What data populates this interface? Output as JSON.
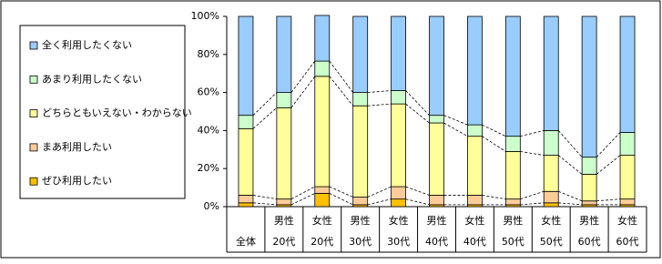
{
  "chart_data": {
    "type": "stacked_bar_100",
    "categories": [
      [
        "全体"
      ],
      [
        "男性",
        "20代"
      ],
      [
        "女性",
        "20代"
      ],
      [
        "男性",
        "30代"
      ],
      [
        "女性",
        "30代"
      ],
      [
        "男性",
        "40代"
      ],
      [
        "女性",
        "40代"
      ],
      [
        "男性",
        "50代"
      ],
      [
        "女性",
        "50代"
      ],
      [
        "男性",
        "60代"
      ],
      [
        "女性",
        "60代"
      ]
    ],
    "series": [
      {
        "name": "ぜひ利用したい",
        "color": "#ffc000",
        "values": [
          2,
          1,
          7,
          1,
          4,
          1,
          1,
          1,
          2,
          1,
          1
        ]
      },
      {
        "name": "まあ利用したい",
        "color": "#ffcc99",
        "values": [
          4,
          3,
          3.5,
          4,
          6.5,
          5,
          5,
          3,
          6,
          2,
          3
        ]
      },
      {
        "name": "どちらともいえない・わからない",
        "color": "#ffff99",
        "values": [
          35,
          48,
          58,
          48,
          43.5,
          38,
          31,
          25,
          19,
          14,
          23
        ]
      },
      {
        "name": "あまり利用したくない",
        "color": "#ccffcc",
        "values": [
          7,
          8,
          8,
          7,
          7,
          4,
          6,
          8,
          13,
          9,
          12
        ]
      },
      {
        "name": "全く利用したくない",
        "color": "#99ccff",
        "values": [
          52,
          40,
          24,
          40,
          39,
          52,
          57,
          63,
          60,
          74,
          61
        ]
      }
    ],
    "ylim": [
      0,
      100
    ],
    "yticks": [
      {
        "value": 0,
        "label": "0%"
      },
      {
        "value": 20,
        "label": "20%"
      },
      {
        "value": 40,
        "label": "40%"
      },
      {
        "value": 60,
        "label": "60%"
      },
      {
        "value": 80,
        "label": "80%"
      },
      {
        "value": 100,
        "label": "100%"
      }
    ],
    "legend": "left"
  }
}
